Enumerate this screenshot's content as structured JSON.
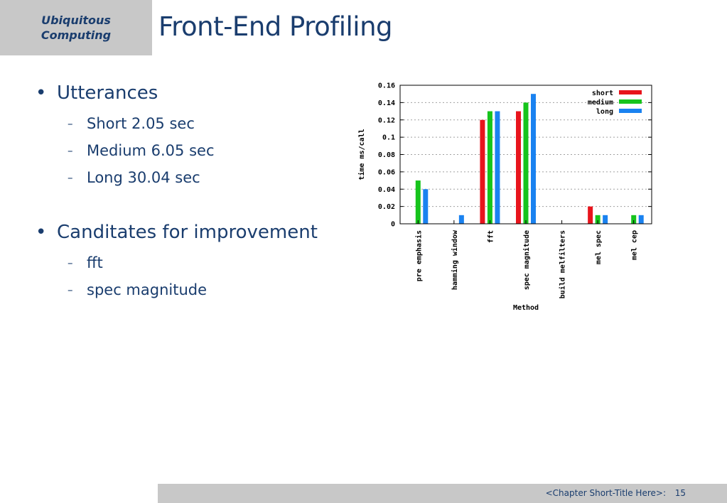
{
  "logo": {
    "line1": "Ubiquitous",
    "line2": "Computing"
  },
  "title": "Front-End Profiling",
  "bullets": [
    {
      "label": "Utterances",
      "sub": [
        "Short 2.05 sec",
        "Medium 6.05 sec",
        "Long 30.04 sec"
      ]
    },
    {
      "label": "Canditates for improvement",
      "sub": [
        "fft",
        "spec magnitude"
      ]
    }
  ],
  "bullet_symbol": "•",
  "dash_symbol": "–",
  "footer": {
    "chapter": "<Chapter Short-Title Here>:",
    "page": "15"
  },
  "colors": {
    "title": "#1a3d6e",
    "short": "#e8141c",
    "medium": "#16c41c",
    "long": "#1a82f0",
    "bar_bg": "#c8c8c8"
  },
  "chart_data": {
    "type": "bar",
    "title": "",
    "xlabel": "Method",
    "ylabel": "time ms/call",
    "ylim": [
      0,
      0.16
    ],
    "yticks": [
      "0",
      "0.02",
      "0.04",
      "0.06",
      "0.08",
      "0.1",
      "0.12",
      "0.14",
      "0.16"
    ],
    "grid": true,
    "legend_position": "top-right",
    "categories": [
      "pre emphasis",
      "hamming window",
      "fft",
      "spec magnitude",
      "build melfilters",
      "mel spec",
      "mel cep"
    ],
    "series": [
      {
        "name": "short",
        "color": "#e8141c",
        "values": [
          0,
          0,
          0.12,
          0.13,
          0,
          0.02,
          0
        ]
      },
      {
        "name": "medium",
        "color": "#16c41c",
        "values": [
          0.05,
          0,
          0.13,
          0.14,
          0,
          0.01,
          0.01
        ]
      },
      {
        "name": "long",
        "color": "#1a82f0",
        "values": [
          0.04,
          0.01,
          0.13,
          0.15,
          0,
          0.01,
          0.01
        ]
      }
    ]
  }
}
